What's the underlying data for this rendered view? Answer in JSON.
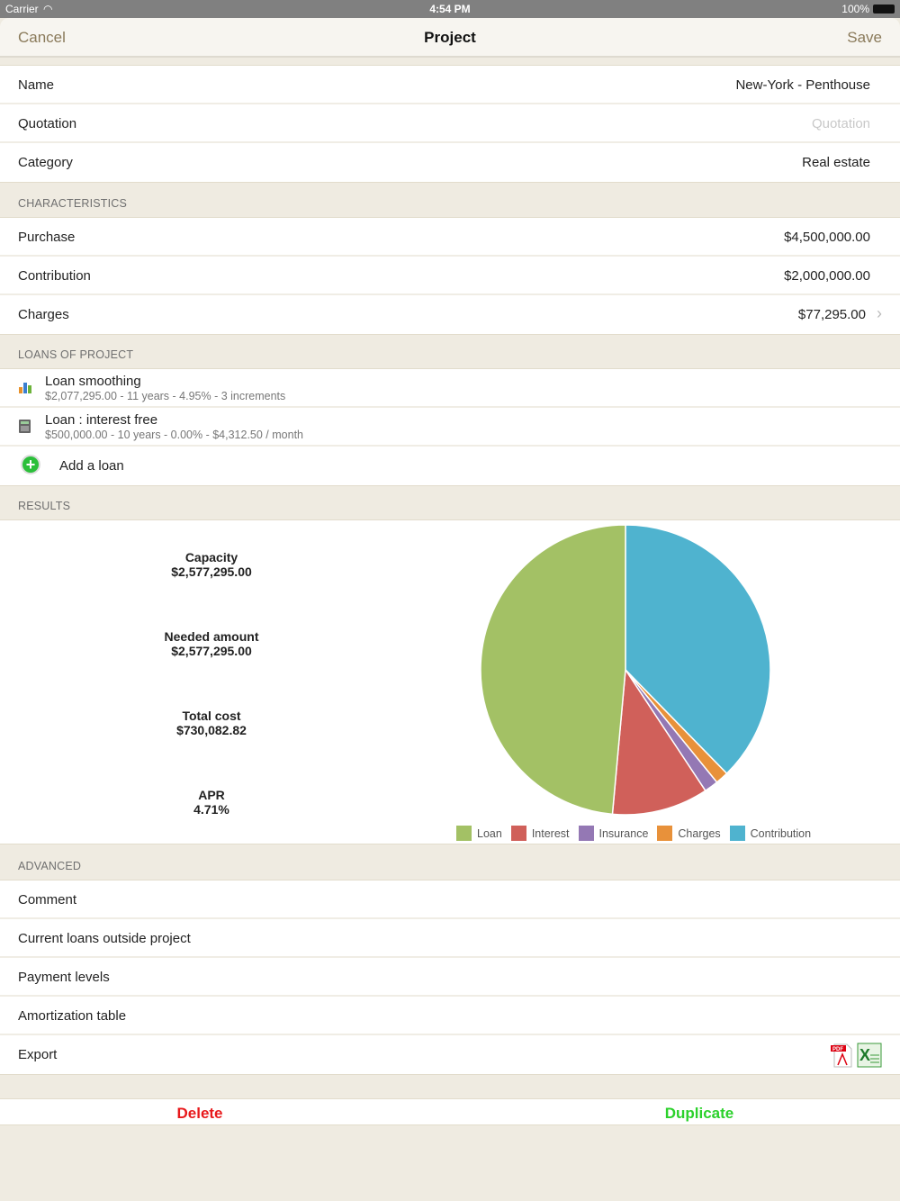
{
  "status": {
    "carrier": "Carrier",
    "time": "4:54 PM",
    "battery": "100%"
  },
  "nav": {
    "cancel": "Cancel",
    "title": "Project",
    "save": "Save"
  },
  "general": [
    {
      "label": "Name",
      "value": "New-York - Penthouse"
    },
    {
      "label": "Quotation",
      "placeholder": "Quotation"
    },
    {
      "label": "Category",
      "value": "Real estate"
    }
  ],
  "characteristics": {
    "header": "CHARACTERISTICS",
    "rows": [
      {
        "label": "Purchase",
        "value": "$4,500,000.00"
      },
      {
        "label": "Contribution",
        "value": "$2,000,000.00"
      },
      {
        "label": "Charges",
        "value": "$77,295.00"
      }
    ]
  },
  "loans": {
    "header": "LOANS OF PROJECT",
    "items": [
      {
        "title": "Loan smoothing",
        "subtitle": "$2,077,295.00 - 11 years - 4.95% - 3 increments",
        "icon": "bar-chart-icon"
      },
      {
        "title": "Loan : interest free",
        "subtitle": "$500,000.00 - 10 years - 0.00% - $4,312.50 / month",
        "icon": "calculator-icon"
      }
    ],
    "add": "Add a loan"
  },
  "results": {
    "header": "RESULTS",
    "items": [
      {
        "label": "Capacity",
        "value": "$2,577,295.00"
      },
      {
        "label": "Needed amount",
        "value": "$2,577,295.00"
      },
      {
        "label": "Total cost",
        "value": "$730,082.82"
      },
      {
        "label": "APR",
        "value": "4.71%"
      }
    ]
  },
  "chart_data": {
    "type": "pie",
    "categories": [
      "Contribution",
      "Charges",
      "Insurance",
      "Interest",
      "Loan"
    ],
    "values": [
      2000000,
      77295,
      82788,
      570000,
      2577295
    ],
    "colors": [
      "#4fb3cf",
      "#e8913a",
      "#9478b4",
      "#d0605a",
      "#a3c165"
    ],
    "legend": [
      "Loan",
      "Interest",
      "Insurance",
      "Charges",
      "Contribution"
    ],
    "legend_colors": [
      "#a3c165",
      "#d0605a",
      "#9478b4",
      "#e8913a",
      "#4fb3cf"
    ],
    "legend_position": "bottom"
  },
  "advanced": {
    "header": "ADVANCED",
    "rows": [
      "Comment",
      "Current loans outside project",
      "Payment levels",
      "Amortization table",
      "Export"
    ]
  },
  "actions": {
    "delete": "Delete",
    "duplicate": "Duplicate",
    "delete_color": "#e8191c",
    "duplicate_color": "#2bd12b"
  }
}
